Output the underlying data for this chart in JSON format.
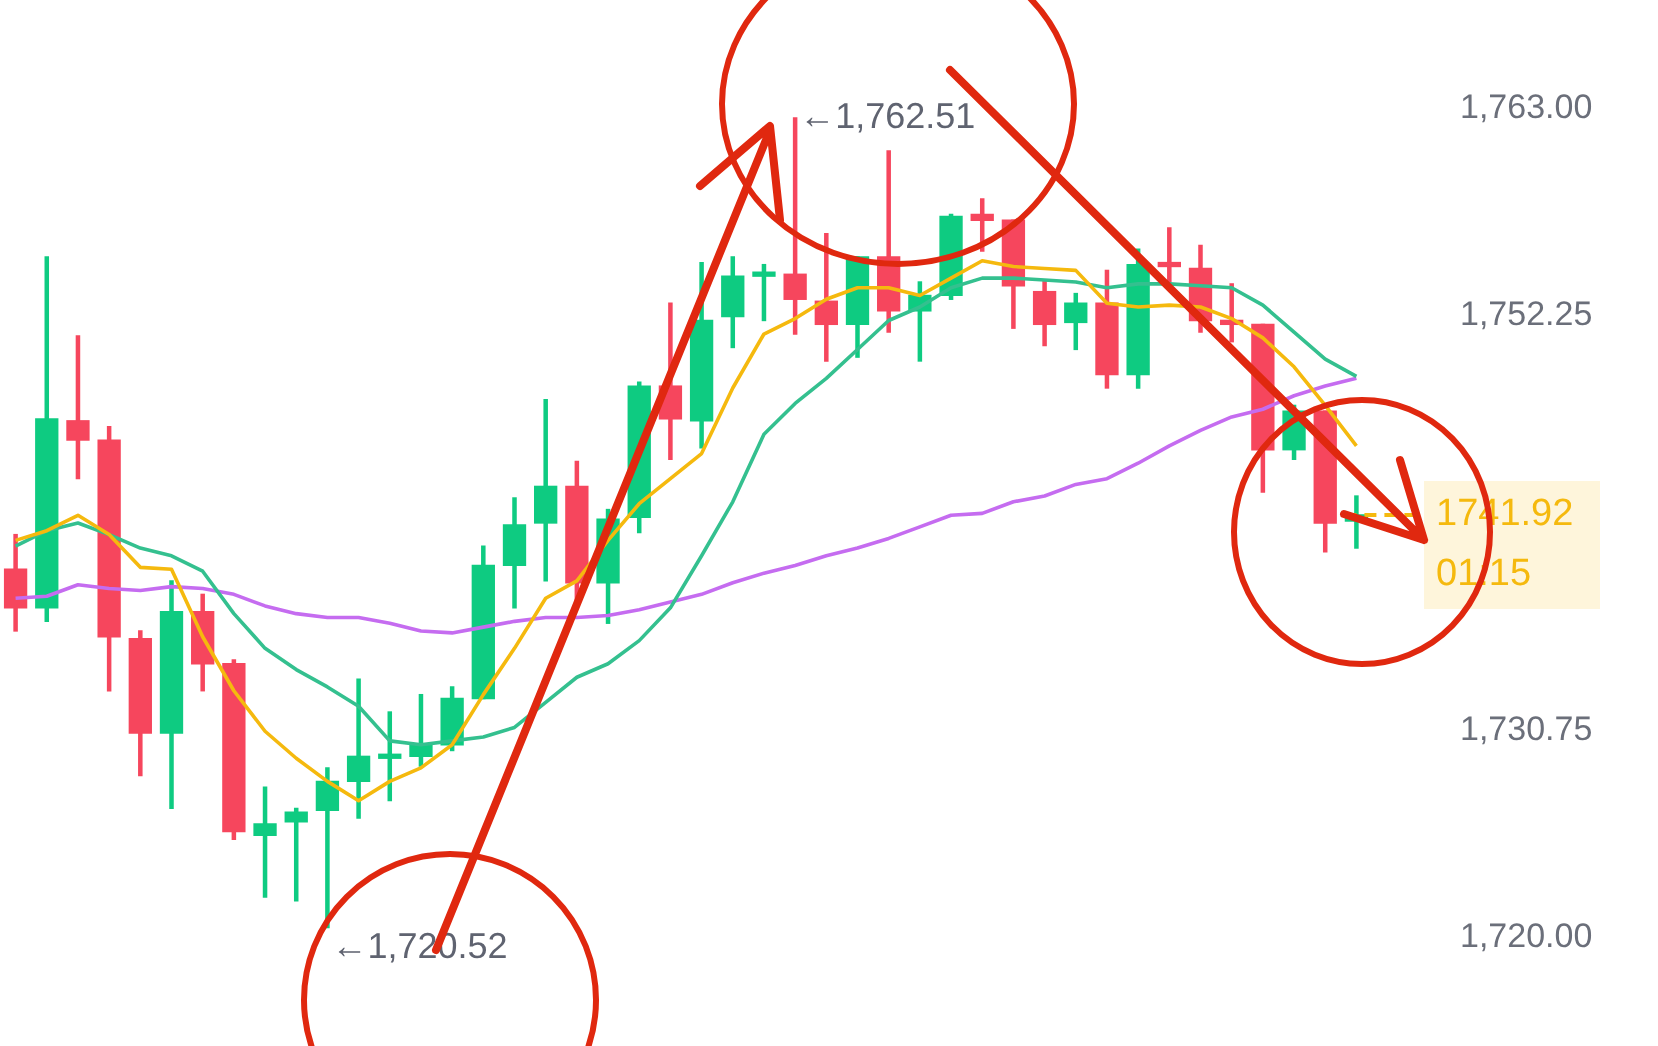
{
  "chart_data": {
    "type": "candlestick",
    "categories": [
      null,
      null,
      null,
      null,
      null,
      null,
      null,
      null,
      null,
      null,
      null,
      null,
      null,
      null,
      null,
      null,
      null,
      null,
      null,
      null,
      null,
      null,
      null,
      null,
      null,
      null,
      null,
      null,
      null,
      null,
      null,
      null,
      null,
      null,
      null,
      null,
      null,
      null,
      null,
      null,
      null,
      null,
      null,
      null
    ],
    "ohlc": [
      [
        1739.1,
        1740.9,
        1735.9,
        1737.1
      ],
      [
        1737.1,
        1755.3,
        1736.4,
        1746.9
      ],
      [
        1746.8,
        1751.2,
        1743.8,
        1745.8
      ],
      [
        1745.8,
        1746.5,
        1732.8,
        1735.6
      ],
      [
        1735.5,
        1735.9,
        1728.4,
        1730.6
      ],
      [
        1730.6,
        1738.5,
        1726.7,
        1736.9
      ],
      [
        1736.9,
        1737.8,
        1732.8,
        1734.2
      ],
      [
        1734.2,
        1734.4,
        1725.1,
        1725.5
      ],
      [
        1725.3,
        1727.8,
        1722.1,
        1725.9
      ],
      [
        1726.0,
        1726.7,
        1721.9,
        1726.5
      ],
      [
        1726.6,
        1728.8,
        1720.52,
        1728.1
      ],
      [
        1728.1,
        1733.4,
        1726.2,
        1729.4
      ],
      [
        1729.3,
        1731.7,
        1727.1,
        1729.4
      ],
      [
        1729.4,
        1732.6,
        1728.9,
        1730.0
      ],
      [
        1730.0,
        1733.0,
        1729.7,
        1732.4
      ],
      [
        1732.4,
        1740.3,
        1732.4,
        1739.3
      ],
      [
        1739.3,
        1742.8,
        1737.1,
        1741.4
      ],
      [
        1741.5,
        1747.9,
        1738.5,
        1743.4
      ],
      [
        1743.4,
        1744.7,
        1737.2,
        1738.4
      ],
      [
        1738.4,
        1742.2,
        1736.3,
        1741.7
      ],
      [
        1741.8,
        1748.8,
        1741.0,
        1748.6
      ],
      [
        1748.6,
        1752.9,
        1744.8,
        1746.9
      ],
      [
        1746.8,
        1755.0,
        1745.4,
        1752.0
      ],
      [
        1752.2,
        1755.3,
        1750.6,
        1754.3
      ],
      [
        1754.3,
        1754.9,
        1752.0,
        1754.4
      ],
      [
        1754.4,
        1762.51,
        1751.3,
        1753.1
      ],
      [
        1753.0,
        1756.5,
        1749.9,
        1751.8
      ],
      [
        1751.8,
        1755.3,
        1750.1,
        1755.3
      ],
      [
        1755.3,
        1760.8,
        1751.4,
        1752.5
      ],
      [
        1752.5,
        1754.0,
        1749.9,
        1753.3
      ],
      [
        1753.3,
        1757.5,
        1753.1,
        1757.4
      ],
      [
        1757.5,
        1758.3,
        1755.6,
        1757.2
      ],
      [
        1757.2,
        1757.2,
        1751.6,
        1753.8
      ],
      [
        1753.5,
        1754.1,
        1750.7,
        1751.8
      ],
      [
        1751.9,
        1753.4,
        1750.5,
        1752.9
      ],
      [
        1752.9,
        1754.6,
        1748.5,
        1749.2
      ],
      [
        1749.2,
        1755.7,
        1748.5,
        1754.9
      ],
      [
        1755.0,
        1756.8,
        1753.7,
        1754.8
      ],
      [
        1754.7,
        1755.9,
        1751.4,
        1752.0
      ],
      [
        1752.0,
        1753.9,
        1750.9,
        1751.8
      ],
      [
        1751.8,
        1751.8,
        1743.1,
        1745.3
      ],
      [
        1745.3,
        1747.6,
        1744.8,
        1747.3
      ],
      [
        1747.3,
        1747.3,
        1740.0,
        1741.5
      ],
      [
        1741.6,
        1742.9,
        1740.2,
        1741.92
      ]
    ],
    "colors": [
      "#f6465d",
      "#0ecb81",
      "#f6465d",
      "#f6465d",
      "#f6465d",
      "#0ecb81",
      "#f6465d",
      "#f6465d",
      "#0ecb81",
      "#0ecb81",
      "#0ecb81",
      "#0ecb81",
      "#0ecb81",
      "#0ecb81",
      "#0ecb81",
      "#0ecb81",
      "#0ecb81",
      "#0ecb81",
      "#f6465d",
      "#0ecb81",
      "#0ecb81",
      "#f6465d",
      "#0ecb81",
      "#0ecb81",
      "#0ecb81",
      "#f6465d",
      "#f6465d",
      "#0ecb81",
      "#f6465d",
      "#0ecb81",
      "#0ecb81",
      "#f6465d",
      "#f6465d",
      "#f6465d",
      "#0ecb81",
      "#f6465d",
      "#0ecb81",
      "#f6465d",
      "#f6465d",
      "#f6465d",
      "#f6465d",
      "#0ecb81",
      "#f6465d",
      "#0ecb81"
    ],
    "series": [
      {
        "type": "line",
        "color": "#f5b90e",
        "values": [
          1740.6,
          1741.1,
          1741.9,
          1740.9,
          1739.2,
          1739.1,
          1735.6,
          1732.8,
          1730.7,
          1729.3,
          1728.1,
          1727.1,
          1728.1,
          1728.8,
          1730.0,
          1732.6,
          1735.0,
          1737.6,
          1738.5,
          1740.6,
          1742.5,
          1743.8,
          1745.1,
          1748.5,
          1751.3,
          1752.1,
          1753.1,
          1753.7,
          1753.7,
          1753.3,
          1754.2,
          1755.1,
          1754.8,
          1754.7,
          1754.6,
          1752.9,
          1752.7,
          1752.8,
          1752.7,
          1752.1,
          1751.1,
          1749.6,
          1747.6,
          1745.5
        ]
      },
      {
        "type": "line",
        "color": "#34c08f",
        "values": [
          1740.3,
          1741.1,
          1741.5,
          1740.9,
          1740.2,
          1739.8,
          1739.0,
          1736.8,
          1735.0,
          1733.9,
          1733.0,
          1732.0,
          1730.2,
          1730.0,
          1730.2,
          1730.4,
          1730.9,
          1732.2,
          1733.5,
          1734.2,
          1735.4,
          1737.1,
          1739.8,
          1742.6,
          1746.1,
          1747.7,
          1749.0,
          1750.5,
          1752.0,
          1752.7,
          1753.7,
          1754.2,
          1754.2,
          1754.1,
          1754.0,
          1753.7,
          1753.9,
          1753.9,
          1753.8,
          1753.7,
          1752.8,
          1751.4,
          1750.0,
          1749.1
        ]
      },
      {
        "type": "line",
        "color": "#c56cf0",
        "values": [
          1737.6,
          1737.7,
          1738.3,
          1738.1,
          1738.0,
          1738.2,
          1738.1,
          1737.8,
          1737.2,
          1736.8,
          1736.6,
          1736.6,
          1736.3,
          1735.9,
          1735.8,
          1736.1,
          1736.4,
          1736.6,
          1736.6,
          1736.7,
          1737.0,
          1737.4,
          1737.8,
          1738.4,
          1738.9,
          1739.3,
          1739.8,
          1740.2,
          1740.7,
          1741.3,
          1741.9,
          1742.0,
          1742.6,
          1742.9,
          1743.5,
          1743.8,
          1744.6,
          1745.5,
          1746.3,
          1747.0,
          1747.4,
          1748.1,
          1748.6,
          1749.0
        ]
      }
    ],
    "ylim": [
      1720,
      1763
    ],
    "yticks": [
      {
        "value": 1720,
        "label": "1,720.00"
      },
      {
        "value": 1730.75,
        "label": "1,730.75"
      },
      {
        "value": 1752.25,
        "label": "1,752.25"
      },
      {
        "value": 1763,
        "label": "1,763.00"
      }
    ],
    "grid": false,
    "legend": false,
    "marker": "none",
    "ref_lines": [
      {
        "axis": "y",
        "value": 1741.92,
        "label": "1741.92",
        "color": "#f5b90e",
        "line_style": "dashed"
      }
    ],
    "annotations": [
      "←1,762.51",
      "←1,720.52",
      "01:15"
    ]
  }
}
